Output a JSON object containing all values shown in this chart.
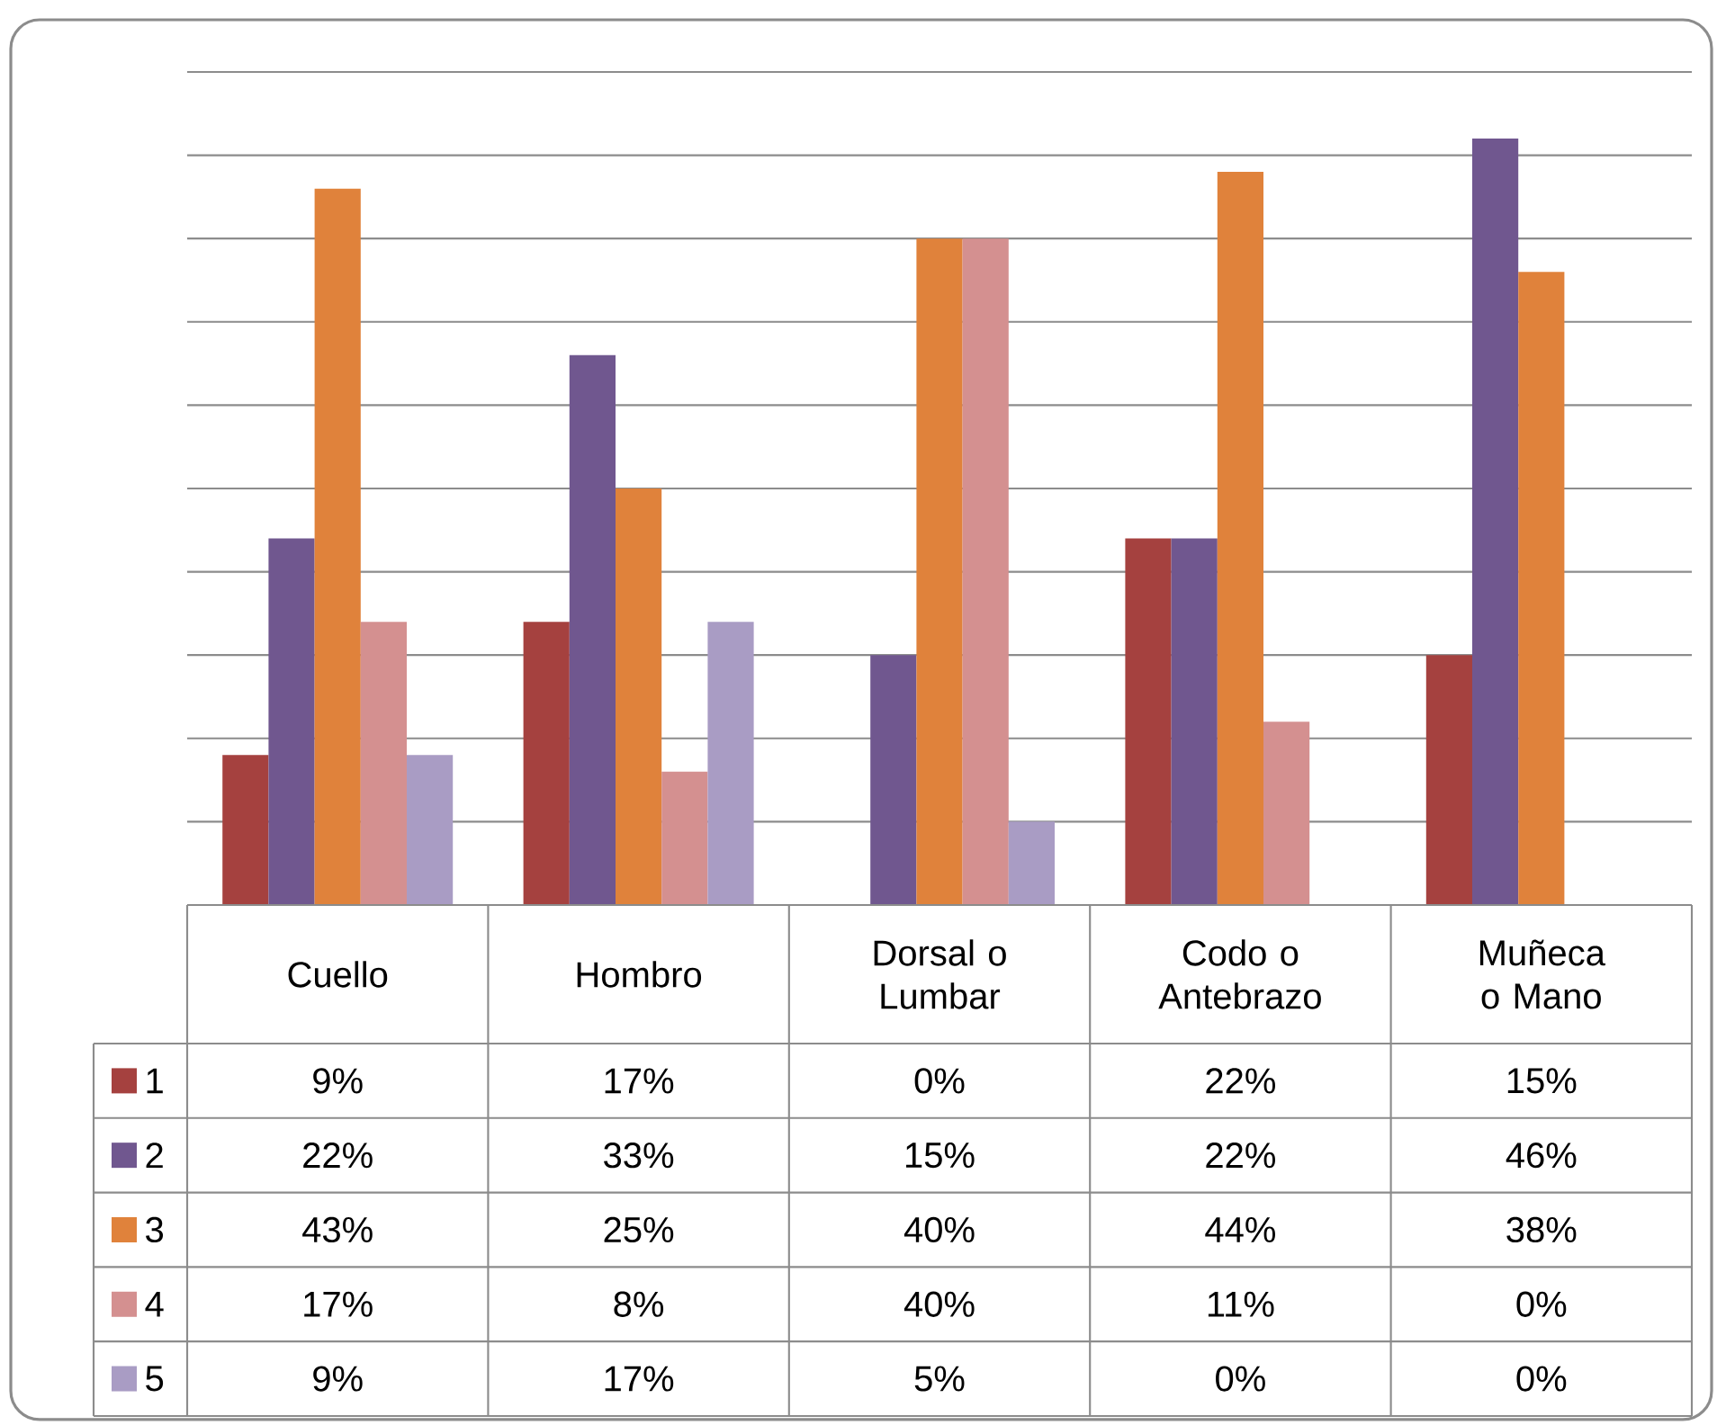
{
  "chart_data": {
    "type": "bar",
    "categories": [
      "Cuello",
      "Hombro",
      "Dorsal o Lumbar",
      "Codo o Antebrazo",
      "Muñeca o Mano"
    ],
    "series": [
      {
        "name": "1",
        "color": "#a5413f",
        "values": [
          9,
          17,
          0,
          22,
          15
        ],
        "value_labels": [
          "9%",
          "17%",
          "0%",
          "22%",
          "15%"
        ]
      },
      {
        "name": "2",
        "color": "#70578f",
        "values": [
          22,
          33,
          15,
          22,
          46
        ],
        "value_labels": [
          "22%",
          "33%",
          "15%",
          "22%",
          "46%"
        ]
      },
      {
        "name": "3",
        "color": "#e0823b",
        "values": [
          43,
          25,
          40,
          44,
          38
        ],
        "value_labels": [
          "43%",
          "25%",
          "40%",
          "44%",
          "38%"
        ]
      },
      {
        "name": "4",
        "color": "#d49090",
        "values": [
          17,
          8,
          40,
          11,
          0
        ],
        "value_labels": [
          "17%",
          "8%",
          "40%",
          "11%",
          "0%"
        ]
      },
      {
        "name": "5",
        "color": "#a99cc4",
        "values": [
          9,
          17,
          5,
          0,
          0
        ],
        "value_labels": [
          "9%",
          "17%",
          "5%",
          "0%",
          "0%"
        ]
      }
    ],
    "ylim": [
      0,
      50
    ],
    "yticks": [
      {
        "value": 0,
        "label": null
      },
      {
        "value": 5,
        "label": null
      },
      {
        "value": 10,
        "label": null
      },
      {
        "value": 15,
        "label": null
      },
      {
        "value": 20,
        "label": null
      },
      {
        "value": 25,
        "label": null
      },
      {
        "value": 30,
        "label": null
      },
      {
        "value": 35,
        "label": null
      },
      {
        "value": 40,
        "label": null
      },
      {
        "value": 45,
        "label": null
      },
      {
        "value": 50,
        "label": null
      }
    ],
    "grid": "y",
    "legend": "bottom",
    "tick_labels": "x"
  }
}
